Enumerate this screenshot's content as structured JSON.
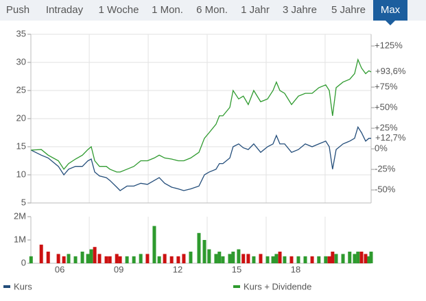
{
  "tabs": {
    "labels": [
      "Push",
      "Intraday",
      "1 Woche",
      "1 Mon.",
      "6 Mon.",
      "1 Jahr",
      "3 Jahre",
      "5 Jahre",
      "Max"
    ],
    "active": 8
  },
  "chart_data": [
    {
      "type": "line",
      "x": [
        4.54,
        5.06,
        5.41,
        5.93,
        6.21,
        6.45,
        6.8,
        7.15,
        7.43,
        7.6,
        7.78,
        8.02,
        8.37,
        8.55,
        8.9,
        9.07,
        9.42,
        9.77,
        10.12,
        10.46,
        10.81,
        11.06,
        11.34,
        11.69,
        12.03,
        12.31,
        12.66,
        13.08,
        13.36,
        13.6,
        13.95,
        14.12,
        14.3,
        14.65,
        14.82,
        15.1,
        15.34,
        15.59,
        15.87,
        16.22,
        16.57,
        16.85,
        17.02,
        17.2,
        17.44,
        17.79,
        18.14,
        18.49,
        18.84,
        19.18,
        19.53,
        19.71,
        19.88,
        20.06,
        20.41,
        20.75,
        21.0,
        21.17,
        21.35,
        21.56,
        21.73,
        21.84
      ],
      "xlim": [
        4.53,
        21.84
      ],
      "xgrid": [
        7.5,
        10.5,
        13.5,
        16.5,
        19.5
      ],
      "ylim": [
        5,
        35
      ],
      "yticks": [
        5,
        10,
        15,
        20,
        25,
        30,
        35
      ],
      "y2lim": [
        -65.8,
        139.2
      ],
      "y2ticks": [
        {
          "value": 125,
          "label": "+125%"
        },
        {
          "value": 75,
          "label": "+75%"
        },
        {
          "value": 50,
          "label": "+50%"
        },
        {
          "value": 25,
          "label": "+25%"
        },
        {
          "value": 0,
          "label": "0%"
        },
        {
          "value": -25,
          "label": "-25%"
        },
        {
          "value": -50,
          "label": "-50%"
        }
      ],
      "grid": true,
      "series": [
        {
          "name": "Kurs",
          "color": "#234d7a",
          "values": [
            14.4,
            13.5,
            13.0,
            11.5,
            10.0,
            11.0,
            11.5,
            11.5,
            12.5,
            12.8,
            10.5,
            9.8,
            9.5,
            9.0,
            7.8,
            7.2,
            8.0,
            8.0,
            8.5,
            8.3,
            9.0,
            9.5,
            8.5,
            7.8,
            7.5,
            7.2,
            7.5,
            8.0,
            10.0,
            10.5,
            11.0,
            12.0,
            12.0,
            13.0,
            15.0,
            15.5,
            14.8,
            14.5,
            15.5,
            14.0,
            15.0,
            15.5,
            17.0,
            15.5,
            15.5,
            14.0,
            14.5,
            15.5,
            15.0,
            15.5,
            16.0,
            15.0,
            11.0,
            14.5,
            15.5,
            16.0,
            16.5,
            18.5,
            17.5,
            16.0,
            16.5,
            16.5
          ]
        },
        {
          "name": "Kurs + Dividende",
          "color": "#2e9a2e",
          "values": [
            14.4,
            14.5,
            13.5,
            12.5,
            11.0,
            12.0,
            12.8,
            13.5,
            14.5,
            15.0,
            12.5,
            11.5,
            11.5,
            11.0,
            10.5,
            10.5,
            11.0,
            11.5,
            12.5,
            12.5,
            13.0,
            13.5,
            13.0,
            12.8,
            12.5,
            12.5,
            13.0,
            14.0,
            16.5,
            17.5,
            19.0,
            20.5,
            20.5,
            22.0,
            25.0,
            23.5,
            24.0,
            22.5,
            25.0,
            23.0,
            23.5,
            25.0,
            26.5,
            25.0,
            24.5,
            22.5,
            24.0,
            24.5,
            24.5,
            25.5,
            26.0,
            25.0,
            20.5,
            25.5,
            26.5,
            27.0,
            28.0,
            30.5,
            29.0,
            28.0,
            28.5,
            28.3
          ]
        }
      ],
      "annotations": [
        {
          "text": "+93,6%",
          "value": 93.6,
          "color": "#2e9a2e"
        },
        {
          "text": "+12,7%",
          "value": 12.7,
          "color": "#234d7a"
        }
      ]
    },
    {
      "type": "bar",
      "x": [
        4.54,
        5.06,
        5.41,
        5.93,
        6.21,
        6.45,
        6.8,
        7.15,
        7.43,
        7.6,
        7.78,
        8.02,
        8.37,
        8.55,
        8.9,
        9.07,
        9.42,
        9.77,
        10.12,
        10.46,
        10.81,
        11.06,
        11.34,
        11.69,
        12.03,
        12.31,
        12.66,
        13.08,
        13.36,
        13.6,
        13.95,
        14.12,
        14.3,
        14.65,
        14.82,
        15.1,
        15.34,
        15.59,
        15.87,
        16.22,
        16.57,
        16.85,
        17.02,
        17.2,
        17.44,
        17.79,
        18.14,
        18.49,
        18.84,
        19.18,
        19.53,
        19.71,
        19.88,
        20.06,
        20.41,
        20.75,
        21.0,
        21.17,
        21.35,
        21.56,
        21.73,
        21.84
      ],
      "values": [
        0.3,
        0.8,
        0.5,
        0.4,
        0.3,
        0.4,
        0.3,
        0.5,
        0.4,
        0.6,
        0.7,
        0.4,
        0.3,
        0.3,
        0.4,
        0.3,
        0.3,
        0.3,
        0.4,
        0.4,
        1.6,
        0.3,
        0.4,
        0.3,
        0.3,
        0.4,
        0.5,
        1.3,
        1.0,
        0.6,
        0.4,
        0.5,
        0.3,
        0.4,
        0.5,
        0.6,
        0.4,
        0.4,
        0.3,
        0.4,
        0.3,
        0.3,
        0.4,
        0.5,
        0.3,
        0.3,
        0.3,
        0.3,
        0.3,
        0.3,
        0.3,
        0.3,
        0.5,
        0.4,
        0.4,
        0.5,
        0.4,
        0.5,
        0.5,
        0.4,
        0.3,
        0.5
      ],
      "color_up": "#2e9a2e",
      "color_down": "#cc1111",
      "xlim": [
        4.53,
        21.84
      ],
      "xticks": [
        {
          "value": 6,
          "label": "06"
        },
        {
          "value": 9,
          "label": "09"
        },
        {
          "value": 12,
          "label": "12"
        },
        {
          "value": 15,
          "label": "15"
        },
        {
          "value": 18,
          "label": "18"
        }
      ],
      "xgrid": [
        7.5,
        10.5,
        13.5,
        16.5,
        19.5
      ],
      "ylim": [
        0,
        2
      ],
      "yticks": [
        0,
        {
          "value": 1,
          "label": "1M"
        },
        {
          "value": 2,
          "label": "2M"
        }
      ]
    }
  ]
}
